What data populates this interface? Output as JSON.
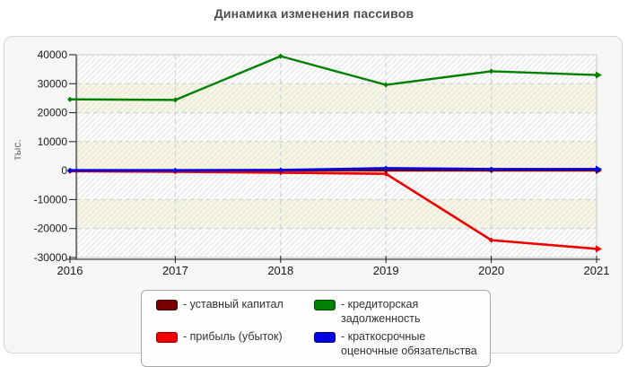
{
  "title": "Динамика изменения пассивов",
  "chart_data": {
    "type": "line",
    "title": "Динамика изменения пассивов",
    "ylabel": "тыс.",
    "xlabel": "",
    "x": [
      2016,
      2017,
      2018,
      2019,
      2020,
      2021
    ],
    "yticks": [
      40000,
      30000,
      20000,
      10000,
      0,
      -10000,
      -20000,
      -30000
    ],
    "ylim": [
      -30000,
      40000
    ],
    "grid": "dashed horizontal and vertical gridlines, alternating hatched bands",
    "legend_position": "bottom",
    "series": [
      {
        "name": "уставный капитал",
        "color": "#7a0000",
        "border": "#2e0000",
        "values": [
          10,
          10,
          10,
          10,
          10,
          10
        ]
      },
      {
        "name": "прибыль (убыток)",
        "color": "#ee0000",
        "border": "#8b0000",
        "values": [
          -200,
          -400,
          -700,
          -1100,
          -24000,
          -27000
        ]
      },
      {
        "name": "кредиторская задолженность",
        "color": "#008000",
        "border": "#004000",
        "values": [
          24600,
          24400,
          39500,
          29600,
          34300,
          33000
        ]
      },
      {
        "name": "краткосрочные оценочные обязательства",
        "color": "#0000e0",
        "border": "#000070",
        "values": [
          100,
          100,
          200,
          800,
          500,
          500
        ]
      }
    ]
  },
  "legend": {
    "items": [
      {
        "label": "- уставный капитал",
        "series": 0
      },
      {
        "label": "- прибыль (убыток)",
        "series": 1
      },
      {
        "label": "- кредиторская задолженность",
        "series": 2
      },
      {
        "label": "- краткосрочные оценочные обязательства",
        "series": 3
      }
    ]
  },
  "colors": {
    "title_text": "#4d4d4d",
    "panel_bg": "#f6f6f6",
    "panel_border": "#d4d4d4",
    "plot_white_band": "#fdfdfd",
    "plot_ivory_band": "#f6f6e3",
    "hatch_line": "#e3e3e3",
    "gridline": "#cccccc",
    "plot_border": "#c9c9c9",
    "axis": "#1a1a1a",
    "tick_text": "#1a1a1a"
  }
}
